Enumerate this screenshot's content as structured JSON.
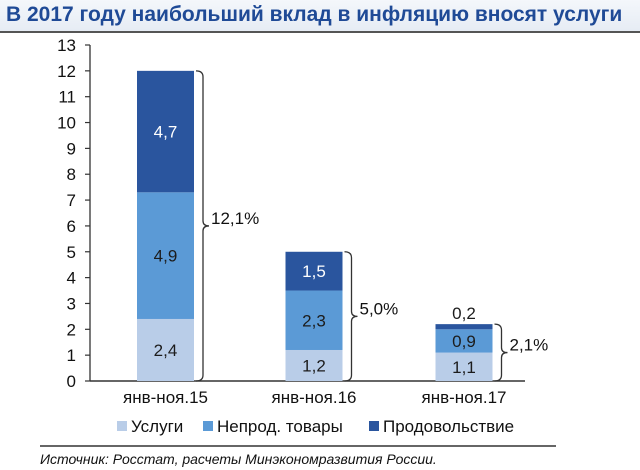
{
  "header": {
    "title": "В 2017 году наибольший вклад в инфляцию вносят услуги"
  },
  "chart_data": {
    "type": "bar",
    "stacked": true,
    "title": "В 2017 году наибольший вклад в инфляцию вносят услуги",
    "xlabel": "",
    "ylabel": "",
    "ylim": [
      0,
      13
    ],
    "yticks": [
      "0",
      "1",
      "2",
      "3",
      "4",
      "5",
      "6",
      "7",
      "8",
      "9",
      "10",
      "11",
      "12",
      "13"
    ],
    "categories": [
      "янв-ноя.15",
      "янв-ноя.16",
      "янв-ноя.17"
    ],
    "series": [
      {
        "name": "Услуги",
        "color": "#b9cde8",
        "values": [
          2.4,
          1.2,
          1.1
        ],
        "labels": [
          "2,4",
          "1,2",
          "1,1"
        ]
      },
      {
        "name": "Непрод. товары",
        "color": "#5b9ad6",
        "values": [
          4.9,
          2.3,
          0.9
        ],
        "labels": [
          "4,9",
          "2,3",
          "0,9"
        ]
      },
      {
        "name": "Продовольствие",
        "color": "#2a559e",
        "values": [
          4.7,
          1.5,
          0.2
        ],
        "labels": [
          "4,7",
          "1,5",
          "0,2"
        ]
      }
    ],
    "totals": [
      "12,1%",
      "5,0%",
      "2,1%"
    ],
    "total_values": [
      12.1,
      5.0,
      2.1
    ],
    "legend": "bottom",
    "grid": false
  },
  "footer": {
    "source": "Источник: Росстат, расчеты Минэкономразвития России."
  }
}
